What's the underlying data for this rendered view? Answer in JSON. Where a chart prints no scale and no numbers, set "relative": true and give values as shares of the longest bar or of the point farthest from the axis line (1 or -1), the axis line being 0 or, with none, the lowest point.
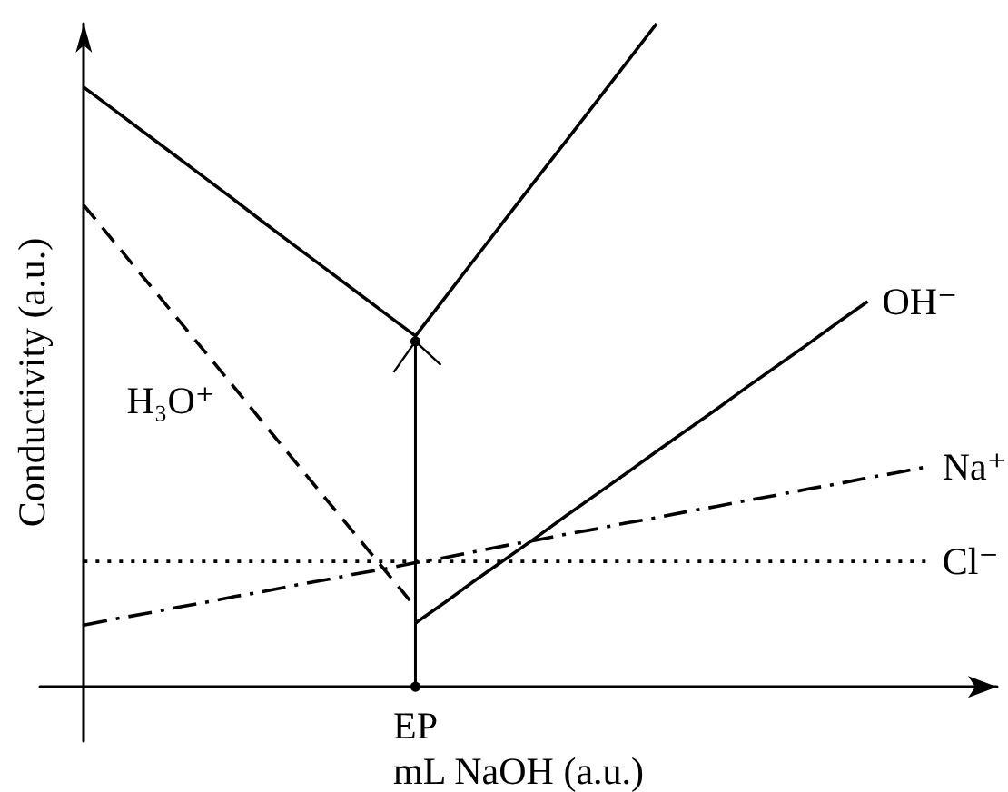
{
  "chart_data": {
    "type": "line",
    "relative": true,
    "xlabel": "mL NaOH (a.u.)",
    "ylabel": "Conductivity (a.u.)",
    "marker": "none",
    "annotations": [
      "EP"
    ],
    "categories": [
      null,
      null,
      null,
      null,
      null,
      null,
      null,
      null,
      null,
      null,
      null,
      null,
      null,
      null,
      null,
      null,
      null,
      null,
      null,
      null,
      null,
      null,
      null,
      null,
      null,
      null,
      null,
      null,
      null
    ],
    "series": [
      {
        "color": "#000000",
        "line_style": "solid",
        "values": [
          0.904,
          0.87,
          0.836,
          0.802,
          0.768,
          0.734,
          0.699,
          0.665,
          0.631,
          0.597,
          0.563,
          0.529,
          0.588,
          0.647,
          0.706,
          0.765,
          0.823,
          0.882,
          0.941,
          1.0,
          null,
          null,
          null,
          null,
          null,
          null,
          null,
          null,
          null
        ]
      },
      {
        "name": "H₃O⁺",
        "color": "#000000",
        "line_style": "dashed",
        "values": [
          0.726,
          0.671,
          0.616,
          0.561,
          0.506,
          0.451,
          0.395,
          0.34,
          0.285,
          0.23,
          0.175,
          0.12,
          null,
          null,
          null,
          null,
          null,
          null,
          null,
          null,
          null,
          null,
          null,
          null,
          null,
          null,
          null,
          null,
          null
        ]
      },
      {
        "name": "OH⁻",
        "color": "#000000",
        "line_style": "solid",
        "values": [
          null,
          null,
          null,
          null,
          null,
          null,
          null,
          null,
          null,
          null,
          null,
          0.096,
          0.128,
          0.161,
          0.193,
          0.225,
          0.258,
          0.29,
          0.322,
          0.355,
          0.387,
          0.419,
          0.452,
          0.484,
          0.516,
          0.549,
          0.581,
          null,
          null
        ]
      },
      {
        "name": "Na⁺",
        "color": "#000000",
        "line_style": "dashdot",
        "values": [
          0.093,
          0.102,
          0.11,
          0.119,
          0.127,
          0.136,
          0.144,
          0.153,
          0.161,
          0.17,
          0.178,
          0.187,
          0.195,
          0.204,
          0.213,
          0.221,
          0.23,
          0.238,
          0.247,
          0.255,
          0.264,
          0.272,
          0.281,
          0.289,
          0.298,
          0.306,
          0.315,
          0.323,
          0.332
        ]
      },
      {
        "name": "Cl⁻",
        "color": "#000000",
        "line_style": "dotted",
        "values": [
          0.189,
          0.189,
          0.189,
          0.189,
          0.189,
          0.189,
          0.189,
          0.189,
          0.189,
          0.189,
          0.189,
          0.189,
          0.189,
          0.189,
          0.189,
          0.189,
          0.189,
          0.189,
          0.189,
          0.189,
          0.189,
          0.189,
          0.189,
          0.189,
          0.189,
          0.189,
          0.189,
          0.189,
          0.189
        ]
      }
    ]
  }
}
